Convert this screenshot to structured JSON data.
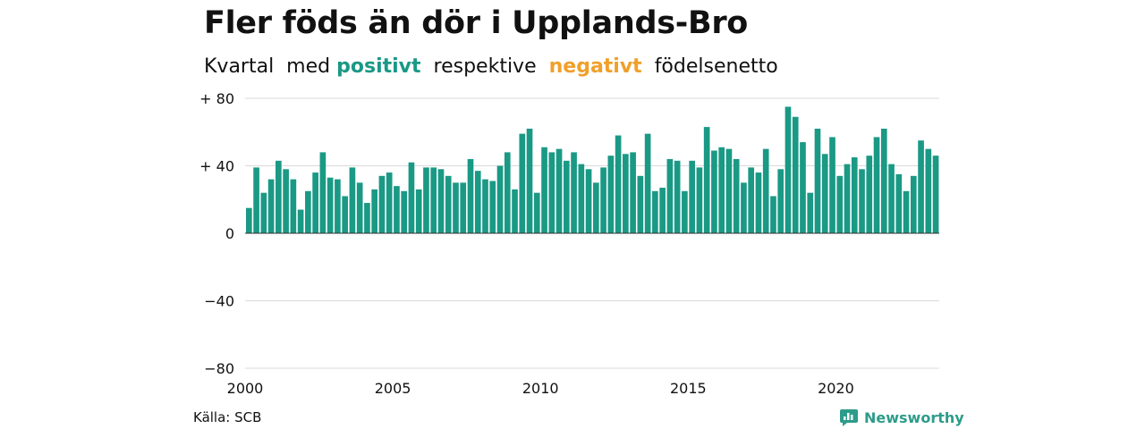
{
  "title": "Fler föds än dör i Upplands-Bro",
  "subtitle": {
    "part1": "Kvartal  med ",
    "positive": "positivt",
    "part2": "  respektive  ",
    "negative": "negativt",
    "part3": "  födelsenetto"
  },
  "colors": {
    "positive": "#1a9985",
    "negative": "#f0a02a",
    "grid": "#d9d9d9",
    "brand": "#2d9c8a"
  },
  "source": "Källa: SCB",
  "brand": {
    "name": "Newsworthy",
    "icon": "newsworthy-logo-icon"
  },
  "chart_data": {
    "type": "bar",
    "title": "Fler föds än dör i Upplands-Bro",
    "xlabel": "",
    "ylabel": "",
    "ylim": [
      -80,
      80
    ],
    "yticks": [
      {
        "value": 80,
        "label": "+ 80"
      },
      {
        "value": 40,
        "label": "+ 40"
      },
      {
        "value": 0,
        "label": "0"
      },
      {
        "value": -40,
        "label": "−40"
      },
      {
        "value": -80,
        "label": "−80"
      }
    ],
    "xticks": [
      "2000",
      "2005",
      "2010",
      "2015",
      "2020"
    ],
    "grid": true,
    "start_year": 2000,
    "values": [
      15,
      39,
      24,
      32,
      43,
      38,
      32,
      14,
      25,
      36,
      48,
      33,
      32,
      22,
      39,
      30,
      18,
      26,
      34,
      36,
      28,
      25,
      42,
      26,
      39,
      39,
      38,
      34,
      30,
      30,
      44,
      37,
      32,
      31,
      40,
      48,
      26,
      59,
      62,
      24,
      51,
      48,
      50,
      43,
      48,
      41,
      38,
      30,
      39,
      46,
      58,
      47,
      48,
      34,
      59,
      25,
      27,
      44,
      43,
      25,
      43,
      39,
      63,
      49,
      51,
      50,
      44,
      30,
      39,
      36,
      50,
      22,
      38,
      75,
      69,
      54,
      24,
      62,
      47,
      57,
      34,
      41,
      45,
      38,
      46,
      57,
      62,
      41,
      35,
      25,
      34,
      55,
      50,
      46
    ]
  }
}
